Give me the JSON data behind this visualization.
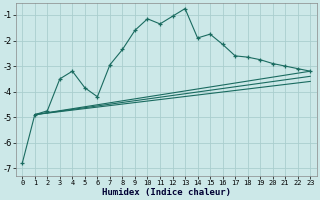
{
  "xlabel": "Humidex (Indice chaleur)",
  "bg_color": "#cce8e8",
  "grid_color": "#aacece",
  "line_color": "#1a6b60",
  "xlim": [
    -0.5,
    23.5
  ],
  "ylim": [
    -7.3,
    -0.55
  ],
  "xticks": [
    0,
    1,
    2,
    3,
    4,
    5,
    6,
    7,
    8,
    9,
    10,
    11,
    12,
    13,
    14,
    15,
    16,
    17,
    18,
    19,
    20,
    21,
    22,
    23
  ],
  "yticks": [
    -7,
    -6,
    -5,
    -4,
    -3,
    -2,
    -1
  ],
  "line1_x": [
    0,
    1,
    2,
    3,
    4,
    5,
    6,
    7,
    8,
    9,
    10,
    11,
    12,
    13,
    14,
    15,
    16,
    17,
    18,
    19,
    20,
    21,
    22,
    23
  ],
  "line1_y": [
    -6.8,
    -4.9,
    -4.75,
    -3.5,
    -3.2,
    -3.85,
    -4.2,
    -2.95,
    -2.35,
    -1.6,
    -1.15,
    -1.35,
    -1.05,
    -0.75,
    -1.9,
    -1.75,
    -2.15,
    -2.6,
    -2.65,
    -2.75,
    -2.9,
    -3.0,
    -3.1,
    -3.2
  ],
  "line2_x": [
    1,
    23
  ],
  "line2_y": [
    -4.9,
    -3.2
  ],
  "line3_x": [
    1,
    23
  ],
  "line3_y": [
    -4.9,
    -3.4
  ],
  "line4_x": [
    1,
    23
  ],
  "line4_y": [
    -4.9,
    -3.6
  ]
}
